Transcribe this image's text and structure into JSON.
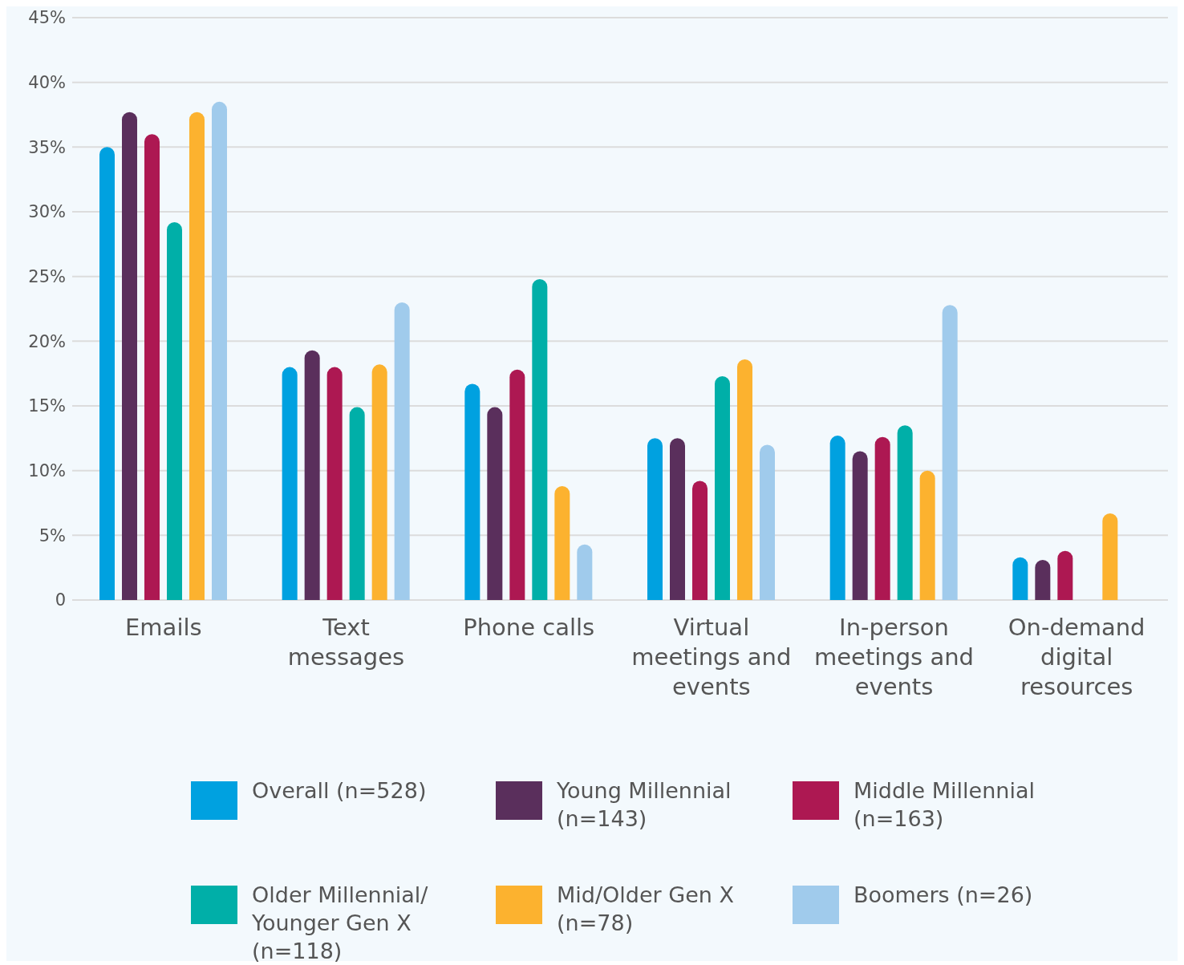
{
  "chart_data": {
    "type": "bar",
    "categories": [
      "Emails",
      "Text messages",
      "Phone calls",
      "Virtual meetings and events",
      "In-person meetings and events",
      "On-demand digital resources"
    ],
    "series": [
      {
        "name": "Overall (n=528)",
        "color": "#00a1e0",
        "values": [
          35,
          18,
          16.7,
          12.5,
          12.7,
          3.3
        ]
      },
      {
        "name": "Young Millennial (n=143)",
        "color": "#5a2f5c",
        "values": [
          37.7,
          19.3,
          14.9,
          12.5,
          11.5,
          3.1
        ]
      },
      {
        "name": "Middle Millennial (n=163)",
        "color": "#ad1852",
        "values": [
          36,
          18,
          17.8,
          9.2,
          12.6,
          3.8
        ]
      },
      {
        "name": "Older Millennial/ Younger Gen X (n=118)",
        "color": "#00afa8",
        "values": [
          29.2,
          14.9,
          24.8,
          17.3,
          13.5,
          null
        ]
      },
      {
        "name": "Mid/Older Gen X (n=78)",
        "color": "#fcb22f",
        "values": [
          37.7,
          18.2,
          8.8,
          18.6,
          10,
          6.7
        ]
      },
      {
        "name": "Boomers (n=26)",
        "color": "#a0cbec",
        "values": [
          38.5,
          23,
          4.3,
          12,
          22.8,
          null
        ]
      }
    ],
    "ylim": [
      0,
      45
    ],
    "yticks": [
      {
        "value": 0,
        "label": "0"
      },
      {
        "value": 5,
        "label": "5%"
      },
      {
        "value": 10,
        "label": "10%"
      },
      {
        "value": 15,
        "label": "15%"
      },
      {
        "value": 20,
        "label": "20%"
      },
      {
        "value": 25,
        "label": "25%"
      },
      {
        "value": 30,
        "label": "30%"
      },
      {
        "value": 35,
        "label": "35%"
      },
      {
        "value": 40,
        "label": "40%"
      },
      {
        "value": 45,
        "label": "45%"
      }
    ],
    "grid": "y",
    "legend": "bottom"
  }
}
